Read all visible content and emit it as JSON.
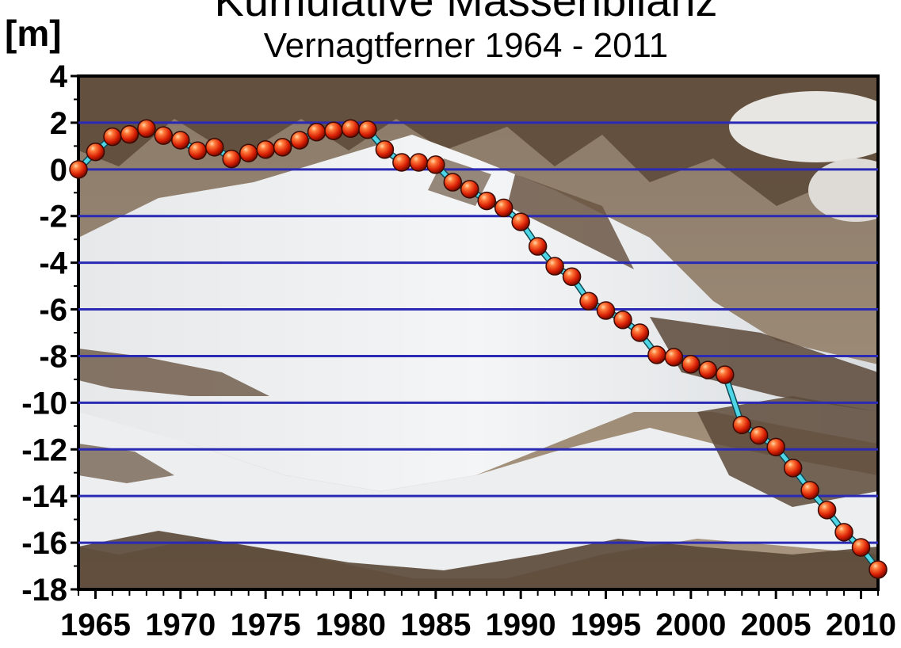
{
  "chart_data": {
    "type": "line",
    "title": "Kumulative Massenbilanz",
    "subtitle": "Vernagtferner  1964 - 2011",
    "ylabel": "[m]",
    "xlabel": "",
    "xlim": [
      1964,
      2011
    ],
    "ylim": [
      -18,
      4
    ],
    "grid": "horizontal",
    "y_ticks": [
      4,
      2,
      0,
      -2,
      -4,
      -6,
      -8,
      -10,
      -12,
      -14,
      -16,
      -18
    ],
    "y_tick_labels": [
      "4",
      "2",
      "0",
      "-2",
      "-4",
      "-6",
      "-8",
      "-10",
      "-12",
      "-14",
      "-16",
      "-18"
    ],
    "x_ticks": [
      1965,
      1970,
      1975,
      1980,
      1985,
      1990,
      1995,
      2000,
      2005,
      2010
    ],
    "x_tick_labels": [
      "1965",
      "1970",
      "1975",
      "1980",
      "1985",
      "1990",
      "1995",
      "2000",
      "2005",
      "2010"
    ],
    "series": [
      {
        "x": [
          1964,
          1965,
          1966,
          1967,
          1968,
          1969,
          1970,
          1971,
          1972,
          1973,
          1974,
          1975,
          1976,
          1977,
          1978,
          1979,
          1980,
          1981,
          1982,
          1983,
          1984,
          1985,
          1986,
          1987,
          1988,
          1989,
          1990,
          1991,
          1992,
          1993,
          1994,
          1995,
          1996,
          1997,
          1998,
          1999,
          2000,
          2001,
          2002,
          2003,
          2004,
          2005,
          2006,
          2007,
          2008,
          2009,
          2010,
          2011
        ],
        "values": [
          0.0,
          0.75,
          1.4,
          1.5,
          1.75,
          1.45,
          1.25,
          0.8,
          0.95,
          0.45,
          0.7,
          0.85,
          0.95,
          1.25,
          1.6,
          1.65,
          1.75,
          1.7,
          0.85,
          0.3,
          0.3,
          0.2,
          -0.55,
          -0.85,
          -1.35,
          -1.65,
          -2.25,
          -3.3,
          -4.15,
          -4.6,
          -5.65,
          -6.05,
          -6.45,
          -7.0,
          -7.95,
          -8.05,
          -8.35,
          -8.6,
          -8.8,
          -10.95,
          -11.4,
          -11.9,
          -12.8,
          -13.75,
          -14.6,
          -15.55,
          -16.2,
          -17.15
        ]
      }
    ],
    "colors": {
      "grid_line": "#2a2ab4",
      "connector": "#4fd6e6",
      "marker_fill": "#e52b0c",
      "marker_edge": "#3a0a00"
    }
  }
}
